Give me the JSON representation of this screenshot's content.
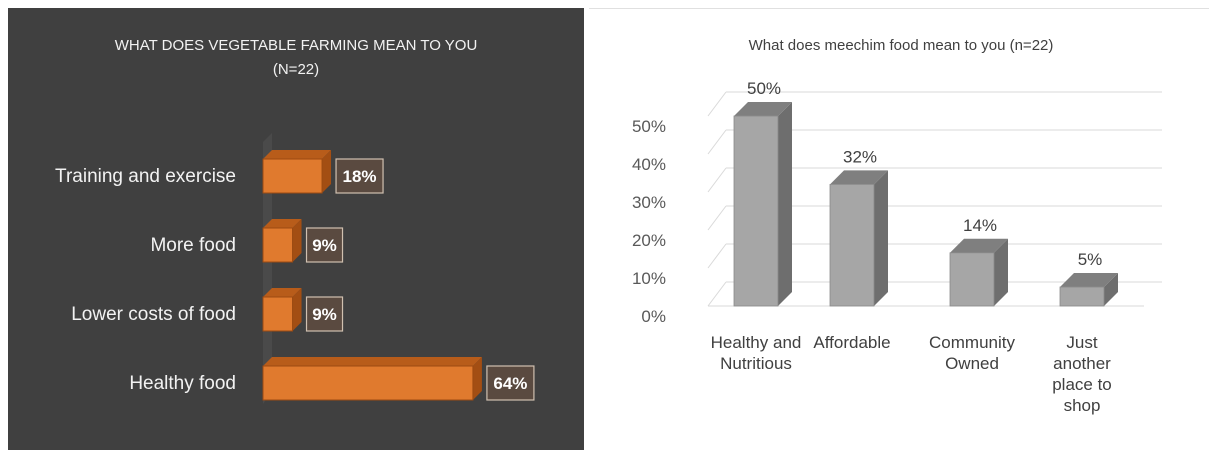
{
  "charts": {
    "left": {
      "chart_data": {
        "type": "bar",
        "orientation": "horizontal",
        "title_line1": "WHAT DOES VEGETABLE FARMING MEAN TO YOU",
        "title_line2": "(N=22)",
        "categories": [
          "Training and exercise",
          "More food",
          "Lower costs of food",
          "Healthy food"
        ],
        "values": [
          18,
          9,
          9,
          64
        ],
        "data_labels": [
          "18%",
          "9%",
          "9%",
          "64%"
        ],
        "bar_color": "#e07a2e",
        "background": "#404040"
      }
    },
    "right": {
      "chart_data": {
        "type": "bar",
        "orientation": "vertical",
        "title": "What does meechim food mean to you (n=22)",
        "categories": [
          [
            "Healthy and",
            "Nutritious"
          ],
          [
            "Affordable"
          ],
          [
            "Community",
            "Owned"
          ],
          [
            "Just",
            "another",
            "place to",
            "shop"
          ]
        ],
        "values": [
          50,
          32,
          14,
          5
        ],
        "data_labels": [
          "50%",
          "32%",
          "14%",
          "5%"
        ],
        "y_ticks": [
          "0%",
          "10%",
          "20%",
          "30%",
          "40%",
          "50%"
        ],
        "ylim": [
          0,
          50
        ],
        "grid": true,
        "bar_color": "#a6a6a6"
      }
    }
  }
}
